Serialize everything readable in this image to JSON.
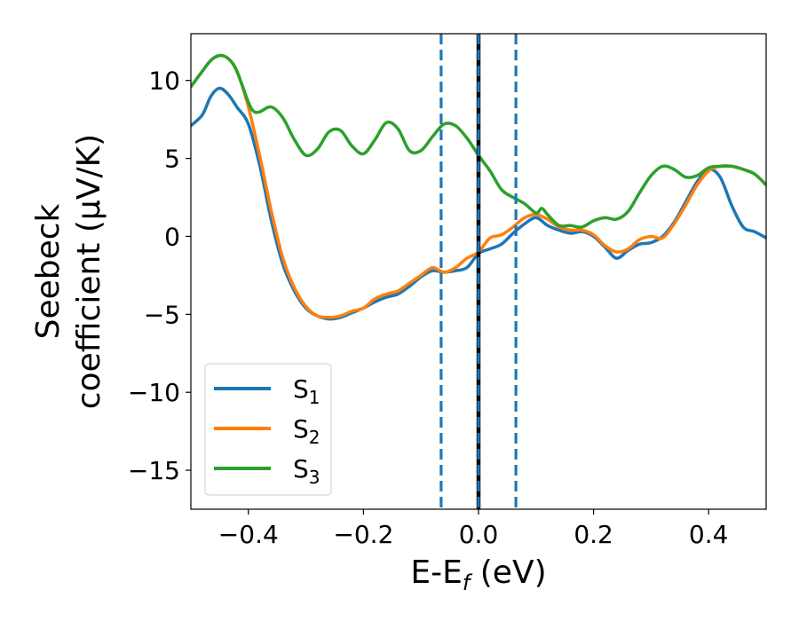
{
  "chart_data": {
    "type": "line",
    "xlabel": {
      "main": "E-E",
      "sub": "f",
      "suffix": " (eV)"
    },
    "ylabel": {
      "line1": "Seebeck",
      "line2": "coefficient  (μV/K)"
    },
    "xlim": [
      -0.5,
      0.5
    ],
    "ylim": [
      -17.5,
      13
    ],
    "xticks": [
      {
        "value": -0.4,
        "label": "−0.4"
      },
      {
        "value": -0.2,
        "label": "−0.2"
      },
      {
        "value": 0.0,
        "label": "0.0"
      },
      {
        "value": 0.2,
        "label": "0.2"
      },
      {
        "value": 0.4,
        "label": "0.4"
      }
    ],
    "yticks": [
      {
        "value": 10,
        "label": "10"
      },
      {
        "value": 5,
        "label": "5"
      },
      {
        "value": 0,
        "label": "0"
      },
      {
        "value": -5,
        "label": "−5"
      },
      {
        "value": -10,
        "label": "−10"
      },
      {
        "value": -15,
        "label": "−15"
      }
    ],
    "grid": false,
    "legend_position": "lower-left",
    "vlines": [
      {
        "x": -0.065,
        "style": "dashed",
        "color": "#1f77b4"
      },
      {
        "x": 0.0,
        "style": "solid",
        "color": "#000000"
      },
      {
        "x": 0.0,
        "style": "dashed",
        "color": "#1f77b4"
      },
      {
        "x": 0.065,
        "style": "dashed",
        "color": "#1f77b4"
      }
    ],
    "series": [
      {
        "name": "S",
        "sub": "1",
        "color": "#1f77b4",
        "points": [
          [
            -0.5,
            7.1
          ],
          [
            -0.48,
            7.8
          ],
          [
            -0.465,
            9.0
          ],
          [
            -0.45,
            9.5
          ],
          [
            -0.435,
            9.1
          ],
          [
            -0.42,
            8.3
          ],
          [
            -0.4,
            7.2
          ],
          [
            -0.38,
            4.5
          ],
          [
            -0.36,
            1.0
          ],
          [
            -0.34,
            -1.8
          ],
          [
            -0.32,
            -3.5
          ],
          [
            -0.3,
            -4.6
          ],
          [
            -0.28,
            -5.1
          ],
          [
            -0.26,
            -5.3
          ],
          [
            -0.24,
            -5.2
          ],
          [
            -0.22,
            -4.9
          ],
          [
            -0.2,
            -4.6
          ],
          [
            -0.18,
            -4.2
          ],
          [
            -0.16,
            -3.9
          ],
          [
            -0.14,
            -3.7
          ],
          [
            -0.12,
            -3.2
          ],
          [
            -0.1,
            -2.6
          ],
          [
            -0.08,
            -2.2
          ],
          [
            -0.06,
            -2.3
          ],
          [
            -0.04,
            -2.2
          ],
          [
            -0.02,
            -2.0
          ],
          [
            0.0,
            -1.1
          ],
          [
            0.02,
            -0.8
          ],
          [
            0.04,
            -0.5
          ],
          [
            0.06,
            0.2
          ],
          [
            0.08,
            0.8
          ],
          [
            0.1,
            1.2
          ],
          [
            0.12,
            0.7
          ],
          [
            0.14,
            0.4
          ],
          [
            0.16,
            0.2
          ],
          [
            0.18,
            0.3
          ],
          [
            0.2,
            0.0
          ],
          [
            0.22,
            -0.7
          ],
          [
            0.24,
            -1.4
          ],
          [
            0.26,
            -0.9
          ],
          [
            0.28,
            -0.5
          ],
          [
            0.3,
            -0.4
          ],
          [
            0.32,
            0.0
          ],
          [
            0.34,
            0.9
          ],
          [
            0.36,
            2.2
          ],
          [
            0.38,
            3.5
          ],
          [
            0.4,
            4.3
          ],
          [
            0.42,
            3.8
          ],
          [
            0.44,
            2.0
          ],
          [
            0.46,
            0.6
          ],
          [
            0.48,
            0.3
          ],
          [
            0.5,
            -0.1
          ]
        ]
      },
      {
        "name": "S",
        "sub": "2",
        "color": "#ff7f0e",
        "points": [
          [
            -0.5,
            9.6
          ],
          [
            -0.48,
            10.6
          ],
          [
            -0.465,
            11.3
          ],
          [
            -0.45,
            11.6
          ],
          [
            -0.435,
            11.4
          ],
          [
            -0.42,
            10.6
          ],
          [
            -0.4,
            8.3
          ],
          [
            -0.38,
            5.1
          ],
          [
            -0.36,
            1.6
          ],
          [
            -0.34,
            -1.4
          ],
          [
            -0.32,
            -3.3
          ],
          [
            -0.3,
            -4.5
          ],
          [
            -0.28,
            -5.1
          ],
          [
            -0.26,
            -5.2
          ],
          [
            -0.24,
            -5.1
          ],
          [
            -0.22,
            -4.8
          ],
          [
            -0.2,
            -4.6
          ],
          [
            -0.18,
            -4.0
          ],
          [
            -0.16,
            -3.7
          ],
          [
            -0.14,
            -3.5
          ],
          [
            -0.12,
            -3.0
          ],
          [
            -0.1,
            -2.5
          ],
          [
            -0.08,
            -2.0
          ],
          [
            -0.06,
            -2.3
          ],
          [
            -0.04,
            -2.0
          ],
          [
            -0.02,
            -1.4
          ],
          [
            0.0,
            -1.0
          ],
          [
            0.02,
            -0.1
          ],
          [
            0.04,
            0.1
          ],
          [
            0.06,
            0.6
          ],
          [
            0.08,
            1.2
          ],
          [
            0.1,
            1.4
          ],
          [
            0.12,
            1.1
          ],
          [
            0.14,
            0.6
          ],
          [
            0.16,
            0.4
          ],
          [
            0.18,
            0.4
          ],
          [
            0.2,
            0.1
          ],
          [
            0.22,
            -0.6
          ],
          [
            0.24,
            -1.0
          ],
          [
            0.26,
            -0.8
          ],
          [
            0.28,
            -0.2
          ],
          [
            0.3,
            0.0
          ],
          [
            0.32,
            -0.1
          ],
          [
            0.34,
            0.8
          ],
          [
            0.36,
            2.0
          ],
          [
            0.38,
            3.3
          ],
          [
            0.4,
            4.2
          ],
          [
            0.42,
            4.5
          ],
          [
            0.44,
            4.5
          ],
          [
            0.46,
            4.3
          ],
          [
            0.48,
            4.0
          ],
          [
            0.5,
            3.3
          ]
        ]
      },
      {
        "name": "S",
        "sub": "3",
        "color": "#2ca02c",
        "points": [
          [
            -0.5,
            9.6
          ],
          [
            -0.48,
            10.6
          ],
          [
            -0.465,
            11.3
          ],
          [
            -0.45,
            11.6
          ],
          [
            -0.435,
            11.4
          ],
          [
            -0.42,
            10.6
          ],
          [
            -0.4,
            8.6
          ],
          [
            -0.39,
            8.0
          ],
          [
            -0.38,
            8.0
          ],
          [
            -0.36,
            8.3
          ],
          [
            -0.34,
            7.6
          ],
          [
            -0.32,
            6.2
          ],
          [
            -0.3,
            5.2
          ],
          [
            -0.28,
            5.6
          ],
          [
            -0.26,
            6.7
          ],
          [
            -0.24,
            6.8
          ],
          [
            -0.22,
            5.8
          ],
          [
            -0.2,
            5.3
          ],
          [
            -0.18,
            6.2
          ],
          [
            -0.16,
            7.3
          ],
          [
            -0.14,
            6.9
          ],
          [
            -0.12,
            5.5
          ],
          [
            -0.1,
            5.5
          ],
          [
            -0.08,
            6.4
          ],
          [
            -0.06,
            7.2
          ],
          [
            -0.04,
            7.1
          ],
          [
            -0.02,
            6.3
          ],
          [
            0.0,
            5.2
          ],
          [
            0.02,
            4.2
          ],
          [
            0.04,
            3.0
          ],
          [
            0.06,
            2.5
          ],
          [
            0.08,
            2.1
          ],
          [
            0.1,
            1.5
          ],
          [
            0.11,
            1.8
          ],
          [
            0.12,
            1.4
          ],
          [
            0.14,
            0.7
          ],
          [
            0.16,
            0.7
          ],
          [
            0.18,
            0.6
          ],
          [
            0.2,
            1.0
          ],
          [
            0.22,
            1.2
          ],
          [
            0.24,
            1.1
          ],
          [
            0.26,
            1.6
          ],
          [
            0.28,
            2.8
          ],
          [
            0.3,
            3.9
          ],
          [
            0.32,
            4.5
          ],
          [
            0.34,
            4.3
          ],
          [
            0.36,
            3.8
          ],
          [
            0.38,
            3.9
          ],
          [
            0.4,
            4.4
          ],
          [
            0.42,
            4.5
          ],
          [
            0.44,
            4.5
          ],
          [
            0.46,
            4.3
          ],
          [
            0.48,
            4.0
          ],
          [
            0.5,
            3.3
          ]
        ]
      }
    ]
  }
}
